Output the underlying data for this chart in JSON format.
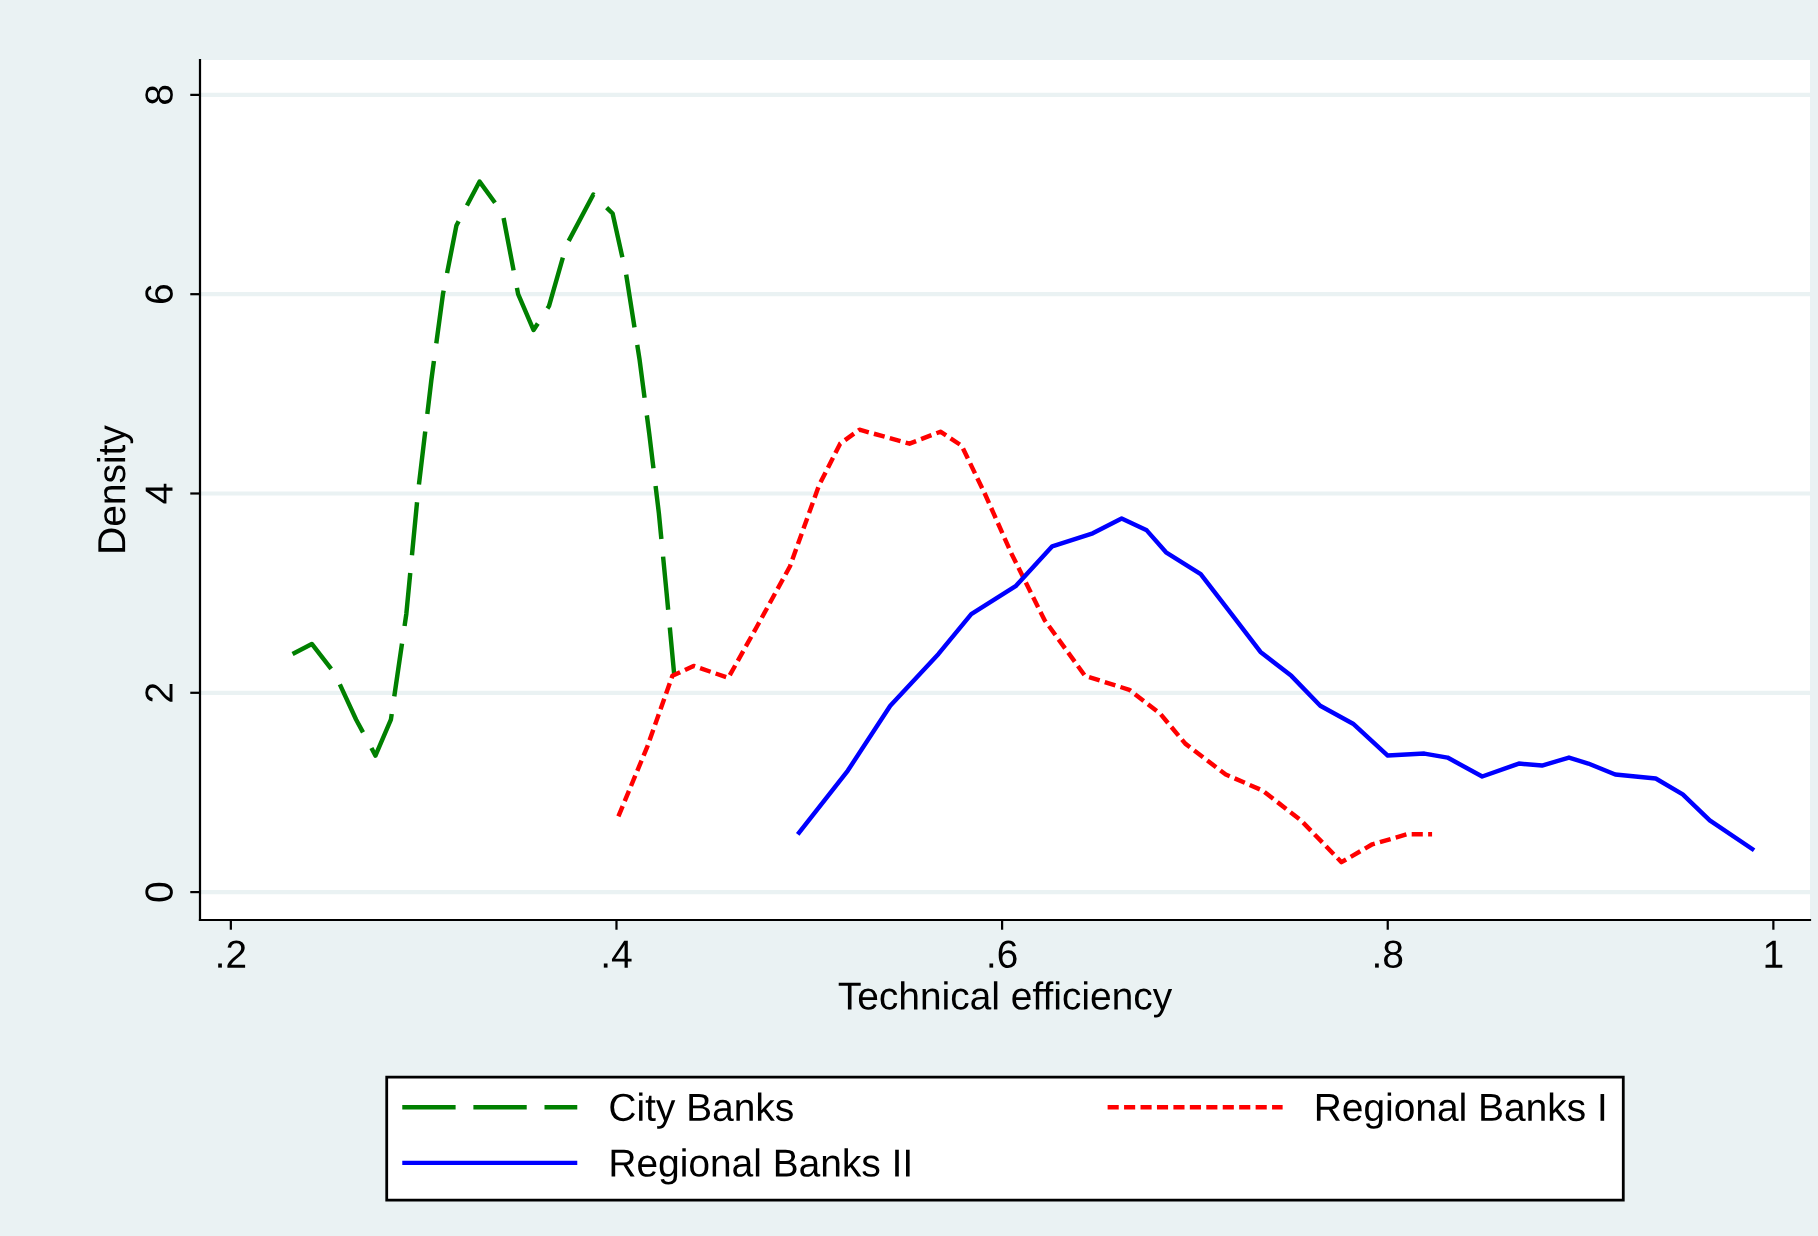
{
  "chart_data": {
    "type": "line",
    "xlabel": "Technical efficiency",
    "ylabel": "Density",
    "xlim": [
      0.184,
      1.019
    ],
    "ylim": [
      -0.28,
      8.35
    ],
    "xticks": [
      {
        "value": 0.2,
        "label": ".2"
      },
      {
        "value": 0.4,
        "label": ".4"
      },
      {
        "value": 0.6,
        "label": ".6"
      },
      {
        "value": 0.8,
        "label": ".8"
      },
      {
        "value": 1,
        "label": "1"
      }
    ],
    "yticks": [
      0,
      2,
      4,
      6,
      8
    ],
    "grid": "y",
    "legend": "bottom",
    "series": [
      {
        "name": "City Banks",
        "color": "#008000",
        "line_style": "dashed",
        "x": [
          0.232,
          0.242,
          0.254,
          0.265,
          0.275,
          0.283,
          0.291,
          0.297,
          0.304,
          0.31,
          0.317,
          0.329,
          0.341,
          0.349,
          0.357,
          0.365,
          0.374,
          0.388,
          0.398,
          0.405,
          0.412,
          0.417,
          0.422,
          0.426,
          0.43
        ],
        "values": [
          2.39,
          2.49,
          2.19,
          1.73,
          1.37,
          1.73,
          2.79,
          4.0,
          5.14,
          6.0,
          6.69,
          7.13,
          6.81,
          6.0,
          5.64,
          5.88,
          6.49,
          7.0,
          6.81,
          6.2,
          5.34,
          4.6,
          3.8,
          3.0,
          2.17
        ]
      },
      {
        "name": "Regional Banks I",
        "color": "#ff0000",
        "line_style": "dotted",
        "x": [
          0.401,
          0.416,
          0.429,
          0.44,
          0.458,
          0.473,
          0.49,
          0.505,
          0.516,
          0.526,
          0.552,
          0.568,
          0.579,
          0.591,
          0.605,
          0.622,
          0.643,
          0.666,
          0.682,
          0.695,
          0.716,
          0.735,
          0.755,
          0.776,
          0.792,
          0.81,
          0.823
        ],
        "values": [
          0.76,
          1.46,
          2.17,
          2.27,
          2.15,
          2.67,
          3.27,
          4.08,
          4.5,
          4.64,
          4.5,
          4.62,
          4.48,
          4.0,
          3.39,
          2.73,
          2.17,
          2.03,
          1.79,
          1.49,
          1.18,
          1.02,
          0.72,
          0.3,
          0.48,
          0.58,
          0.58
        ]
      },
      {
        "name": "Regional Banks II",
        "color": "#0000ff",
        "line_style": "solid",
        "x": [
          0.494,
          0.52,
          0.542,
          0.567,
          0.584,
          0.607,
          0.626,
          0.647,
          0.662,
          0.675,
          0.685,
          0.703,
          0.719,
          0.734,
          0.75,
          0.765,
          0.782,
          0.8,
          0.819,
          0.831,
          0.849,
          0.868,
          0.88,
          0.894,
          0.904,
          0.918,
          0.939,
          0.953,
          0.967,
          0.99
        ],
        "values": [
          0.58,
          1.22,
          1.87,
          2.39,
          2.79,
          3.07,
          3.47,
          3.6,
          3.75,
          3.63,
          3.41,
          3.19,
          2.79,
          2.41,
          2.17,
          1.87,
          1.69,
          1.37,
          1.39,
          1.35,
          1.16,
          1.29,
          1.27,
          1.35,
          1.29,
          1.18,
          1.14,
          0.98,
          0.72,
          0.42
        ]
      }
    ]
  }
}
